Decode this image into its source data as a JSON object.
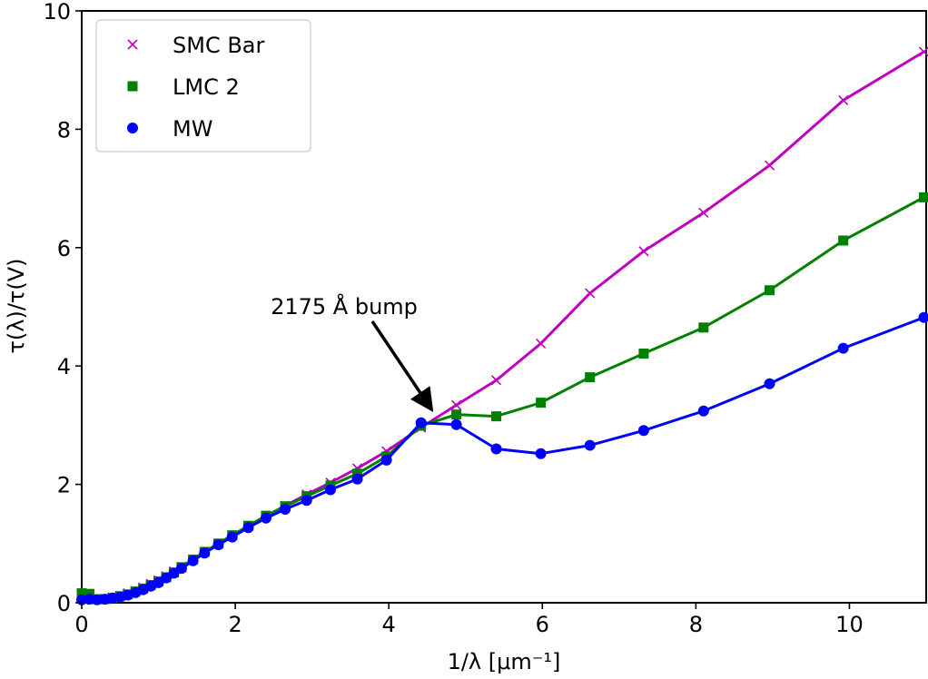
{
  "chart_data": {
    "type": "line",
    "title": "",
    "xlabel": "1/λ [μm⁻¹]",
    "ylabel": "τ(λ)/τ(V)",
    "xlim": [
      0,
      11
    ],
    "ylim": [
      0,
      10
    ],
    "xticks": [
      0,
      2,
      4,
      6,
      8,
      10
    ],
    "yticks": [
      0,
      2,
      4,
      6,
      8,
      10
    ],
    "xtick_labels": [
      "0",
      "2",
      "4",
      "6",
      "8",
      "10"
    ],
    "ytick_labels": [
      "0",
      "2",
      "4",
      "6",
      "8",
      "10"
    ],
    "grid": false,
    "legend": {
      "location": "top-left"
    },
    "series": [
      {
        "name": "SMC Bar",
        "color": "#bf00bf",
        "marker": "x",
        "x": [
          0.0,
          0.1,
          0.2,
          0.3,
          0.4,
          0.5,
          0.6,
          0.7,
          0.8,
          0.9,
          1.0,
          1.1,
          1.2,
          1.3,
          1.45,
          1.6,
          1.78,
          1.96,
          2.17,
          2.4,
          2.65,
          2.93,
          3.24,
          3.59,
          3.97,
          4.42,
          4.88,
          5.4,
          5.98,
          6.62,
          7.32,
          8.1,
          8.96,
          9.92,
          10.97
        ],
        "y": [
          0.12,
          0.14,
          0.07,
          0.06,
          0.09,
          0.12,
          0.16,
          0.2,
          0.26,
          0.32,
          0.38,
          0.45,
          0.53,
          0.61,
          0.73,
          0.86,
          1.0,
          1.14,
          1.29,
          1.46,
          1.64,
          1.83,
          2.03,
          2.27,
          2.56,
          2.96,
          3.34,
          3.76,
          4.38,
          5.23,
          5.94,
          6.59,
          7.39,
          8.49,
          9.31
        ]
      },
      {
        "name": "LMC 2",
        "color": "#008000",
        "marker": "square",
        "x": [
          0.0,
          0.1,
          0.2,
          0.3,
          0.4,
          0.5,
          0.6,
          0.7,
          0.8,
          0.9,
          1.0,
          1.1,
          1.2,
          1.3,
          1.45,
          1.6,
          1.78,
          1.96,
          2.17,
          2.4,
          2.65,
          2.93,
          3.24,
          3.59,
          3.97,
          4.42,
          4.88,
          5.4,
          5.98,
          6.62,
          7.32,
          8.1,
          8.96,
          9.92,
          10.97
        ],
        "y": [
          0.16,
          0.15,
          0.06,
          0.06,
          0.08,
          0.11,
          0.14,
          0.19,
          0.24,
          0.3,
          0.36,
          0.43,
          0.51,
          0.6,
          0.73,
          0.86,
          1.0,
          1.14,
          1.3,
          1.47,
          1.63,
          1.8,
          1.98,
          2.18,
          2.47,
          2.99,
          3.18,
          3.15,
          3.38,
          3.81,
          4.21,
          4.65,
          5.28,
          6.12,
          6.85
        ]
      },
      {
        "name": "MW",
        "color": "#0000ff",
        "marker": "circle",
        "x": [
          0.0,
          0.1,
          0.2,
          0.3,
          0.4,
          0.5,
          0.6,
          0.7,
          0.8,
          0.9,
          1.0,
          1.1,
          1.2,
          1.3,
          1.45,
          1.6,
          1.78,
          1.96,
          2.17,
          2.4,
          2.65,
          2.93,
          3.24,
          3.59,
          3.97,
          4.42,
          4.88,
          5.4,
          5.98,
          6.62,
          7.32,
          8.1,
          8.96,
          9.92,
          10.97
        ],
        "y": [
          0.05,
          0.06,
          0.05,
          0.06,
          0.08,
          0.1,
          0.13,
          0.17,
          0.22,
          0.28,
          0.34,
          0.42,
          0.5,
          0.58,
          0.71,
          0.84,
          0.98,
          1.11,
          1.27,
          1.43,
          1.58,
          1.73,
          1.91,
          2.09,
          2.41,
          3.04,
          3.01,
          2.6,
          2.52,
          2.66,
          2.91,
          3.24,
          3.7,
          4.3,
          4.82
        ]
      }
    ],
    "annotations": [
      {
        "text": "2175 Å bump",
        "xy": [
          4.58,
          3.22
        ],
        "text_xy": [
          2.2,
          5.0
        ],
        "arrow": true
      }
    ]
  }
}
